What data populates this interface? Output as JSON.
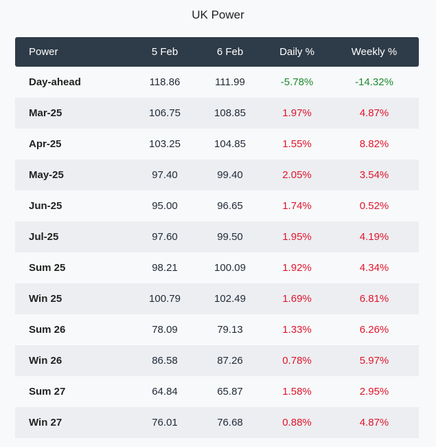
{
  "title": "UK Power",
  "colors": {
    "header_bg": "#2e3b48",
    "positive": "#e0142c",
    "negative": "#1a8a2e",
    "row_alt": "#eceef1"
  },
  "chart_data": {
    "type": "table",
    "title": "UK Power",
    "columns": [
      "Power",
      "5 Feb",
      "6 Feb",
      "Daily %",
      "Weekly %"
    ],
    "rows": [
      [
        "Day-ahead",
        "118.86",
        "111.99",
        "-5.78%",
        "-14.32%"
      ],
      [
        "Mar-25",
        "106.75",
        "108.85",
        "1.97%",
        "4.87%"
      ],
      [
        "Apr-25",
        "103.25",
        "104.85",
        "1.55%",
        "8.82%"
      ],
      [
        "May-25",
        "97.40",
        "99.40",
        "2.05%",
        "3.54%"
      ],
      [
        "Jun-25",
        "95.00",
        "96.65",
        "1.74%",
        "0.52%"
      ],
      [
        "Jul-25",
        "97.60",
        "99.50",
        "1.95%",
        "4.19%"
      ],
      [
        "Sum 25",
        "98.21",
        "100.09",
        "1.92%",
        "4.34%"
      ],
      [
        "Win 25",
        "100.79",
        "102.49",
        "1.69%",
        "6.81%"
      ],
      [
        "Sum 26",
        "78.09",
        "79.13",
        "1.33%",
        "6.26%"
      ],
      [
        "Win 26",
        "86.58",
        "87.26",
        "0.78%",
        "5.97%"
      ],
      [
        "Sum 27",
        "64.84",
        "65.87",
        "1.58%",
        "2.95%"
      ],
      [
        "Win 27",
        "76.01",
        "76.68",
        "0.88%",
        "4.87%"
      ]
    ]
  }
}
